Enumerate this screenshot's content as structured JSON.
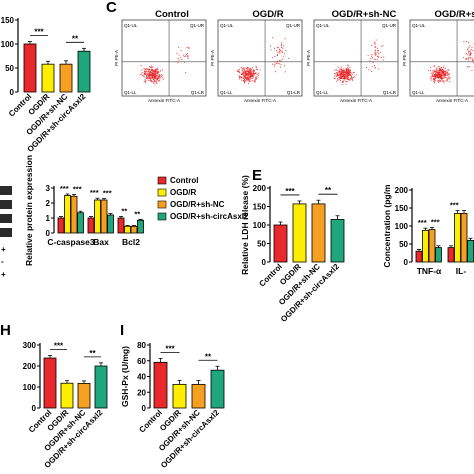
{
  "colors": {
    "control": "#e8282a",
    "ogdr": "#ffee00",
    "ogdr_shnc": "#f5a021",
    "ogdr_sh": "#1fa67a",
    "flow_dot": "#e8282a"
  },
  "panel_letters": {
    "c": "C",
    "e": "E",
    "h": "H",
    "i": "I"
  },
  "groups": [
    "Control",
    "OGD/R",
    "OGD/R+sh-NC",
    "OGD/R+sh-circAsxl2"
  ],
  "flow": {
    "titles": [
      "Control",
      "OGD/R",
      "OGD/R+sh-NC",
      "OGD/R+sh-"
    ],
    "ylabel": "PI PE-A",
    "xlabel": "Annexin FITC-A",
    "quadrants": {
      "ul": "Q1-UL",
      "ur": "Q1-UR",
      "ll": "Q1-LL",
      "lr": "Q1-LR"
    }
  },
  "legend": {
    "items": [
      "Control",
      "OGD/R",
      "OGD/R+sh-NC",
      "OGD/R+sh-circAsxl2"
    ]
  },
  "edge_marks": [
    "+",
    "-",
    "+"
  ],
  "chart_data": [
    {
      "id": "a",
      "type": "bar",
      "categories": [
        "Control",
        "OGD/R",
        "OGD/R+sh-NC",
        "OGD/R+sh-circAsxl2"
      ],
      "values": [
        100,
        58,
        58,
        85
      ],
      "errors": [
        5,
        6,
        7,
        6
      ],
      "ylim": [
        0,
        150
      ],
      "yticks": [
        0,
        50,
        100,
        150
      ],
      "yticklabels": [
        "0",
        "50",
        "100",
        "150"
      ],
      "sig": [
        "***",
        "**"
      ]
    },
    {
      "id": "d",
      "type": "bar",
      "ylabel": "Relative protein expression",
      "categories": [
        "C-caspase3",
        "Bax",
        "Bcl2"
      ],
      "series": [
        {
          "name": "Control",
          "values": [
            1.0,
            1.0,
            1.0
          ],
          "errors": [
            0.1,
            0.1,
            0.1
          ]
        },
        {
          "name": "OGD/R",
          "values": [
            2.5,
            2.2,
            0.45
          ],
          "errors": [
            0.1,
            0.12,
            0.05
          ]
        },
        {
          "name": "OGD/R+sh-NC",
          "values": [
            2.45,
            2.2,
            0.45
          ],
          "errors": [
            0.12,
            0.1,
            0.05
          ]
        },
        {
          "name": "OGD/R+sh-circAsxl2",
          "values": [
            1.35,
            1.2,
            0.85
          ],
          "errors": [
            0.1,
            0.1,
            0.06
          ]
        }
      ],
      "ylim": [
        0,
        3
      ],
      "yticks": [
        0,
        1,
        2,
        3
      ],
      "yticklabels": [
        "0",
        "1",
        "2",
        "3"
      ],
      "sig": [
        "***",
        "***",
        "***",
        "***",
        "**",
        "**"
      ]
    },
    {
      "id": "e",
      "type": "bar",
      "ylabel": "Relative LDH release (%)",
      "categories": [
        "Control",
        "OGD/R",
        "OGD/R+sh-NC",
        "OGD/R+sh-circAsxl2"
      ],
      "values": [
        100,
        157,
        157,
        115
      ],
      "errors": [
        8,
        8,
        10,
        10
      ],
      "ylim": [
        0,
        200
      ],
      "yticks": [
        0,
        50,
        100,
        150,
        200
      ],
      "yticklabels": [
        "0",
        "50",
        "100",
        "150",
        "200"
      ],
      "sig": [
        "***",
        "**"
      ]
    },
    {
      "id": "f",
      "type": "bar",
      "ylabel": "Concentration (pg/m",
      "categories": [
        "TNF-α",
        "IL-"
      ],
      "series": [
        {
          "name": "Control",
          "values": [
            30,
            40
          ],
          "errors": [
            5,
            5
          ]
        },
        {
          "name": "OGD/R",
          "values": [
            88,
            135
          ],
          "errors": [
            6,
            8
          ]
        },
        {
          "name": "OGD/R+sh-NC",
          "values": [
            90,
            135
          ],
          "errors": [
            6,
            8
          ]
        },
        {
          "name": "OGD/R+sh-circAsxl2",
          "values": [
            40,
            60
          ],
          "errors": [
            5,
            6
          ]
        }
      ],
      "ylim": [
        0,
        200
      ],
      "yticks": [
        0,
        50,
        100,
        150,
        200
      ],
      "yticklabels": [
        "0",
        "50",
        "100",
        "150",
        "200"
      ],
      "sig": [
        "***",
        "***",
        "***"
      ]
    },
    {
      "id": "h",
      "type": "bar",
      "categories": [
        "Control",
        "OGD/R",
        "OGD/R+sh-NC",
        "OGD/R+sh-circAsxl2"
      ],
      "values": [
        238,
        118,
        117,
        200
      ],
      "errors": [
        12,
        12,
        12,
        15
      ],
      "ylim": [
        0,
        300
      ],
      "yticks": [
        0,
        100,
        200,
        300
      ],
      "yticklabels": [
        "0",
        "100",
        "200",
        "300"
      ],
      "sig": [
        "***",
        "**"
      ]
    },
    {
      "id": "i",
      "type": "bar",
      "ylabel": "GSH-Px (U/mg)",
      "categories": [
        "Control",
        "OGD/R",
        "OGD/R+sh-NC",
        "OGD/R+sh-circAsxl2"
      ],
      "values": [
        58,
        30,
        30,
        48
      ],
      "errors": [
        5,
        5,
        5,
        5
      ],
      "ylim": [
        0,
        80
      ],
      "yticks": [
        0,
        20,
        40,
        60,
        80
      ],
      "yticklabels": [
        "0",
        "20",
        "40",
        "60",
        "80"
      ],
      "sig": [
        "***",
        "**"
      ]
    }
  ]
}
